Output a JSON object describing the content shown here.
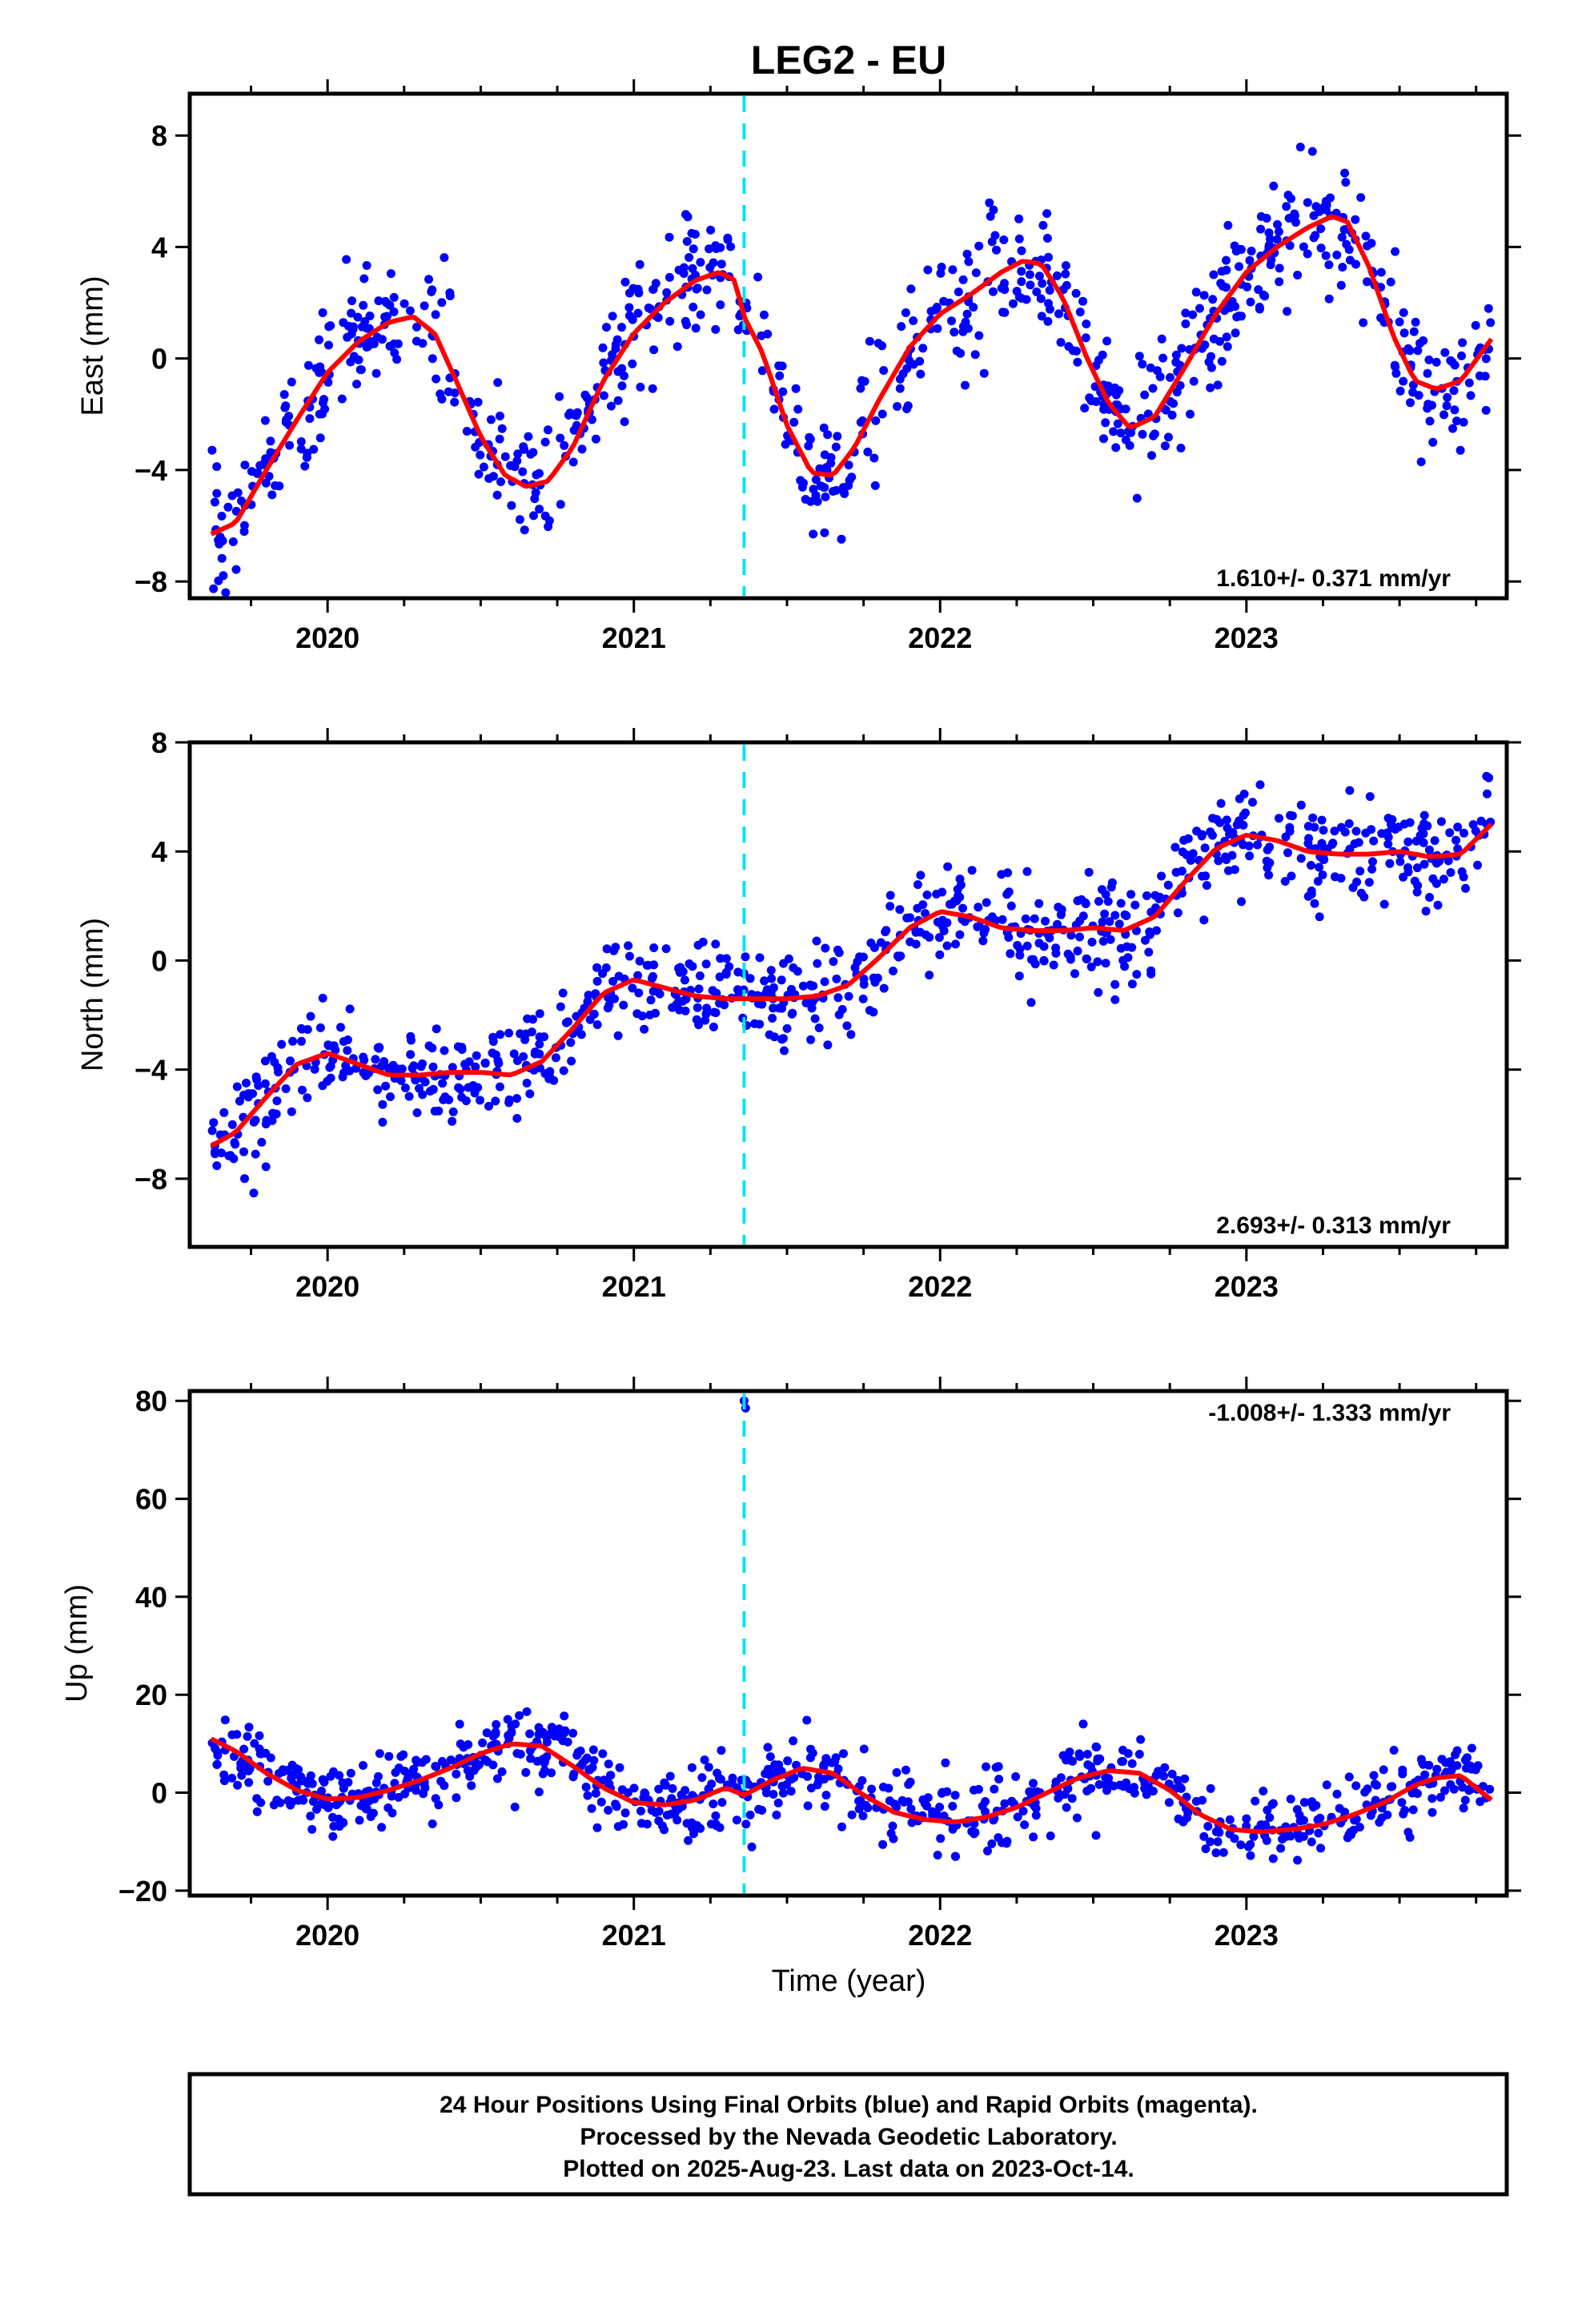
{
  "title": "LEG2 - EU",
  "xlabel": "Time (year)",
  "caption": [
    "24 Hour Positions Using Final Orbits (blue) and Rapid Orbits (magenta).",
    "Processed by the Nevada Geodetic Laboratory.",
    "Plotted on 2025-Aug-23. Last data on 2023-Oct-14."
  ],
  "colors": {
    "points": "#0000ff",
    "fit": "#ff0000",
    "event_line": "#00e5ee",
    "axes": "#000000"
  },
  "chart_data": [
    {
      "type": "scatter",
      "panel": "east",
      "ylabel": "East (mm)",
      "rate_label": "1.610+/- 0.371 mm/yr",
      "xlim": [
        2019.55,
        2023.85
      ],
      "ylim": [
        -8.6,
        9.5
      ],
      "xticks": [
        2020,
        2021,
        2022,
        2023
      ],
      "yticks": [
        -8,
        -4,
        0,
        4,
        8
      ],
      "event_x": 2021.36,
      "fit": {
        "x": [
          2019.62,
          2019.7,
          2019.8,
          2019.9,
          2020.0,
          2020.1,
          2020.2,
          2020.28,
          2020.35,
          2020.42,
          2020.5,
          2020.58,
          2020.65,
          2020.72,
          2020.8,
          2020.9,
          2021.0,
          2021.1,
          2021.2,
          2021.28,
          2021.33,
          2021.36,
          2021.42,
          2021.5,
          2021.58,
          2021.65,
          2021.72,
          2021.8,
          2021.9,
          2022.0,
          2022.1,
          2022.2,
          2022.27,
          2022.33,
          2022.4,
          2022.48,
          2022.55,
          2022.62,
          2022.7,
          2022.8,
          2022.9,
          2023.0,
          2023.1,
          2023.2,
          2023.28,
          2023.33,
          2023.4,
          2023.48,
          2023.55,
          2023.62,
          2023.7,
          2023.8
        ],
        "y": [
          -6.3,
          -5.9,
          -4.0,
          -2.2,
          -0.5,
          0.6,
          1.3,
          1.5,
          0.9,
          -0.8,
          -2.8,
          -4.2,
          -4.6,
          -4.4,
          -3.2,
          -0.8,
          0.9,
          2.0,
          2.8,
          3.1,
          2.8,
          1.5,
          0.2,
          -2.4,
          -4.1,
          -4.2,
          -3.2,
          -1.5,
          0.4,
          1.6,
          2.3,
          3.1,
          3.5,
          3.4,
          2.2,
          0.0,
          -1.6,
          -2.5,
          -2.1,
          -0.3,
          1.6,
          3.1,
          4.0,
          4.7,
          5.1,
          4.9,
          3.3,
          0.8,
          -0.8,
          -1.1,
          -0.8,
          0.7
        ]
      }
    },
    {
      "type": "scatter",
      "panel": "north",
      "ylabel": "North (mm)",
      "rate_label": "2.693+/- 0.313 mm/yr",
      "xlim": [
        2019.55,
        2023.85
      ],
      "ylim": [
        -10.5,
        8.0
      ],
      "xticks": [
        2020,
        2021,
        2022,
        2023
      ],
      "yticks": [
        -8,
        -4,
        0,
        4,
        8
      ],
      "event_x": 2021.36,
      "fit": {
        "x": [
          2019.62,
          2019.7,
          2019.8,
          2019.9,
          2020.0,
          2020.1,
          2020.2,
          2020.3,
          2020.4,
          2020.5,
          2020.6,
          2020.7,
          2020.8,
          2020.9,
          2021.0,
          2021.1,
          2021.2,
          2021.3,
          2021.4,
          2021.5,
          2021.6,
          2021.7,
          2021.8,
          2021.9,
          2022.0,
          2022.1,
          2022.2,
          2022.3,
          2022.4,
          2022.5,
          2022.6,
          2022.7,
          2022.8,
          2022.9,
          2023.0,
          2023.1,
          2023.2,
          2023.3,
          2023.4,
          2023.5,
          2023.6,
          2023.7,
          2023.8
        ],
        "y": [
          -6.8,
          -6.3,
          -5.0,
          -3.8,
          -3.4,
          -3.8,
          -4.2,
          -4.2,
          -4.1,
          -4.1,
          -4.2,
          -3.7,
          -2.5,
          -1.2,
          -0.7,
          -1.0,
          -1.3,
          -1.4,
          -1.4,
          -1.4,
          -1.3,
          -0.9,
          0.1,
          1.2,
          1.8,
          1.6,
          1.2,
          1.1,
          1.1,
          1.2,
          1.1,
          1.6,
          2.9,
          4.1,
          4.6,
          4.4,
          4.0,
          3.9,
          3.9,
          4.0,
          3.8,
          3.9,
          5.0
        ]
      }
    },
    {
      "type": "scatter",
      "panel": "up",
      "ylabel": "Up (mm)",
      "rate_label": "-1.008+/- 1.333 mm/yr",
      "xlim": [
        2019.55,
        2023.85
      ],
      "ylim": [
        -21,
        82
      ],
      "xticks": [
        2020,
        2021,
        2022,
        2023
      ],
      "yticks": [
        -20,
        0,
        20,
        40,
        60,
        80
      ],
      "event_x": 2021.36,
      "outliers": [
        [
          2021.36,
          80.0
        ],
        [
          2021.365,
          78.5
        ]
      ],
      "fit": {
        "x": [
          2019.62,
          2019.7,
          2019.8,
          2019.9,
          2020.0,
          2020.1,
          2020.2,
          2020.3,
          2020.4,
          2020.5,
          2020.6,
          2020.7,
          2020.8,
          2020.9,
          2021.0,
          2021.1,
          2021.2,
          2021.3,
          2021.36,
          2021.45,
          2021.55,
          2021.65,
          2021.75,
          2021.85,
          2021.95,
          2022.05,
          2022.15,
          2022.25,
          2022.35,
          2022.45,
          2022.55,
          2022.65,
          2022.75,
          2022.85,
          2022.95,
          2023.05,
          2023.15,
          2023.25,
          2023.35,
          2023.45,
          2023.55,
          2023.62,
          2023.7,
          2023.8
        ],
        "y": [
          11.0,
          8.5,
          4.0,
          0.5,
          -1.3,
          -1.0,
          0.5,
          2.5,
          5.0,
          8.0,
          10.0,
          9.5,
          5.5,
          1.0,
          -2.0,
          -2.5,
          -1.5,
          1.0,
          -0.5,
          2.5,
          5.0,
          4.0,
          -0.5,
          -4.0,
          -5.5,
          -6.0,
          -5.0,
          -3.0,
          0.0,
          3.0,
          4.5,
          4.0,
          0.5,
          -4.5,
          -7.5,
          -8.0,
          -7.5,
          -6.5,
          -4.5,
          -2.0,
          1.5,
          3.0,
          3.5,
          -1.5
        ]
      }
    }
  ]
}
